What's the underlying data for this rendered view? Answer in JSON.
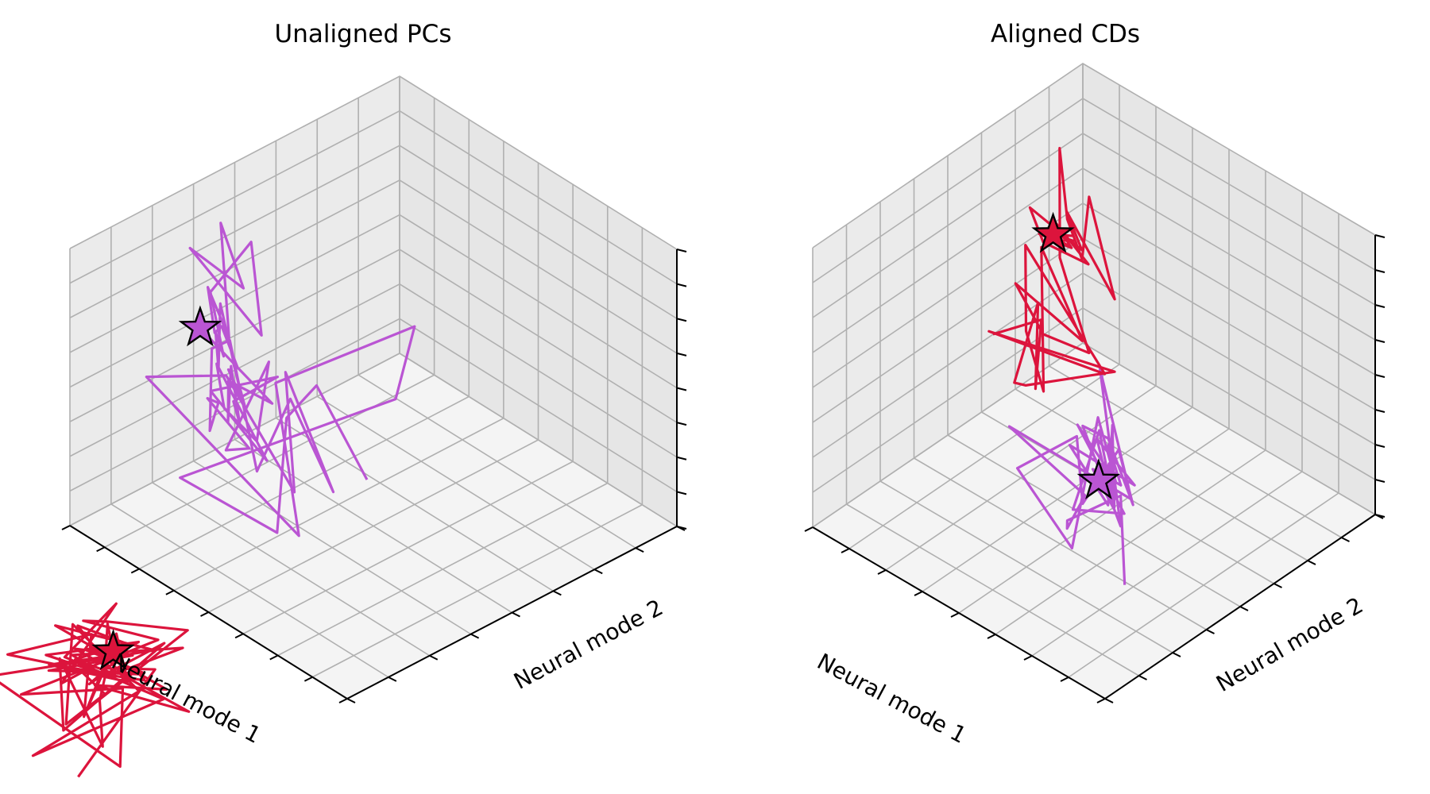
{
  "colors": {
    "red": "#dc143c",
    "purple": "#ba55d3",
    "pane_left": "#ebebeb",
    "pane_right": "#e6e6e6",
    "pane_floor": "#f4f4f4",
    "grid": "#b0b0b0"
  },
  "chart_data": [
    {
      "type": "line3d",
      "title": "Unaligned PCs",
      "xlabel": "Neural mode 1",
      "ylabel": "Neural mode 2",
      "zlabel": "",
      "grid": true,
      "series": [
        {
          "color": "red",
          "points": [
            [
              -0.1,
              -0.9,
              0.34
            ],
            [
              -0.08,
              -0.65,
              0.56
            ],
            [
              -0.13,
              -0.85,
              0.72
            ],
            [
              0.01,
              -0.79,
              0.42
            ],
            [
              -0.1,
              -0.86,
              0.83
            ],
            [
              0.0,
              -1.03,
              0.8
            ],
            [
              -0.06,
              -0.77,
              0.6
            ],
            [
              -0.18,
              -0.65,
              0.7
            ],
            [
              0.04,
              -0.8,
              0.63
            ],
            [
              -0.09,
              -0.81,
              0.64
            ],
            [
              -0.13,
              -0.86,
              0.61
            ],
            [
              -0.01,
              -0.75,
              0.3
            ],
            [
              0.05,
              -0.83,
              0.63
            ],
            [
              -0.13,
              -0.97,
              0.57
            ],
            [
              -0.03,
              -0.58,
              0.58
            ],
            [
              0.03,
              -0.72,
              0.51
            ],
            [
              -0.12,
              -0.89,
              0.59
            ],
            [
              -0.15,
              -0.61,
              0.72
            ],
            [
              0.01,
              -0.72,
              0.72
            ],
            [
              0.06,
              -0.75,
              0.71
            ],
            [
              -0.21,
              -0.75,
              0.81
            ],
            [
              0.07,
              -0.93,
              0.55
            ],
            [
              -0.13,
              -0.79,
              0.61
            ],
            [
              -0.18,
              -0.84,
              0.39
            ],
            [
              0.17,
              -0.94,
              0.56
            ],
            [
              -0.15,
              -0.71,
              0.71
            ],
            [
              0.03,
              -0.86,
              0.78
            ],
            [
              -0.11,
              -0.64,
              0.5
            ],
            [
              0.03,
              -0.74,
              0.49
            ],
            [
              -0.19,
              -0.64,
              0.47
            ],
            [
              -0.04,
              -0.86,
              0.74
            ],
            [
              -0.13,
              -0.76,
              0.71
            ],
            [
              0.03,
              -0.88,
              0.63
            ],
            [
              -0.1,
              -0.7,
              0.59
            ],
            [
              0.02,
              -0.78,
              0.65
            ],
            [
              -0.08,
              -0.7,
              0.69
            ],
            [
              -0.04,
              -0.9,
              0.64
            ],
            [
              0.06,
              -0.65,
              0.71
            ],
            [
              0.02,
              -0.84,
              0.66
            ],
            [
              -0.17,
              -0.7,
              0.54
            ],
            [
              -0.02,
              -0.97,
              0.41
            ],
            [
              -0.07,
              -0.69,
              0.5
            ],
            [
              0.11,
              -0.74,
              0.66
            ],
            [
              -0.08,
              -0.92,
              0.53
            ],
            [
              0.03,
              -0.71,
              0.44
            ],
            [
              -0.05,
              -0.85,
              0.66
            ],
            [
              -0.15,
              -0.74,
              0.62
            ],
            [
              0.0,
              -0.63,
              0.48
            ],
            [
              -0.08,
              -0.8,
              0.64
            ],
            [
              -0.14,
              -0.9,
              0.7
            ],
            [
              -0.05,
              -0.72,
              0.64
            ],
            [
              0.1,
              -0.82,
              0.57
            ],
            [
              -0.1,
              -0.75,
              0.59
            ],
            [
              0.0,
              -0.7,
              0.67
            ],
            [
              -0.1,
              -0.78,
              0.74
            ],
            [
              0.03,
              -0.8,
              0.62
            ],
            [
              -0.09,
              -0.78,
              0.63
            ],
            [
              0.08,
              -0.75,
              0.68
            ],
            [
              -0.08,
              -0.73,
              0.7
            ],
            [
              0.04,
              -0.88,
              0.68
            ],
            [
              -0.1,
              -0.82,
              0.66
            ],
            [
              0.02,
              -0.71,
              0.7
            ],
            [
              -0.06,
              -0.76,
              0.68
            ]
          ]
        },
        {
          "color": "purple",
          "points": [
            [
              0.63,
              0.59,
              0.03
            ],
            [
              0.8,
              0.58,
              0.27
            ],
            [
              0.73,
              0.43,
              0.29
            ],
            [
              0.55,
              0.25,
              0.1
            ],
            [
              0.9,
              0.25,
              0.08
            ],
            [
              0.61,
              0.66,
              0.29
            ],
            [
              0.72,
              0.81,
              0.39
            ],
            [
              0.71,
              0.38,
              0.46
            ],
            [
              0.4,
              0.19,
              0.22
            ],
            [
              0.95,
              0.19,
              0.45
            ],
            [
              0.71,
              0.23,
              0.58
            ],
            [
              0.44,
              0.21,
              0.34
            ],
            [
              0.71,
              0.41,
              0.48
            ],
            [
              0.49,
              0.37,
              0.21
            ],
            [
              0.74,
              0.45,
              0.34
            ],
            [
              0.48,
              0.13,
              0.44
            ],
            [
              0.78,
              0.3,
              0.62
            ],
            [
              0.94,
              0.38,
              0.44
            ],
            [
              0.65,
              0.13,
              0.48
            ],
            [
              0.75,
              0.24,
              0.45
            ],
            [
              0.73,
              0.19,
              0.51
            ],
            [
              0.46,
              0.09,
              0.56
            ],
            [
              0.58,
              0.12,
              0.46
            ],
            [
              0.77,
              0.41,
              0.48
            ],
            [
              0.54,
              0.18,
              0.48
            ],
            [
              0.61,
              0.14,
              0.58
            ],
            [
              0.78,
              0.26,
              0.56
            ],
            [
              0.48,
              0.16,
              0.46
            ],
            [
              0.73,
              0.2,
              0.53
            ],
            [
              0.56,
              0.26,
              0.65
            ],
            [
              0.66,
              0.21,
              0.53
            ],
            [
              0.59,
              0.17,
              0.52
            ],
            [
              0.74,
              0.27,
              0.57
            ],
            [
              0.62,
              0.16,
              0.51
            ],
            [
              0.69,
              0.22,
              0.58
            ],
            [
              0.52,
              0.21,
              0.61
            ],
            [
              0.72,
              0.26,
              0.6
            ],
            [
              0.58,
              0.18,
              0.57
            ],
            [
              0.69,
              0.22,
              0.62
            ],
            [
              0.63,
              0.21,
              0.56
            ],
            [
              0.85,
              0.33,
              0.69
            ],
            [
              0.69,
              0.19,
              0.64
            ],
            [
              0.76,
              0.24,
              0.7
            ],
            [
              0.6,
              0.13,
              0.78
            ],
            [
              0.85,
              0.3,
              0.75
            ],
            [
              0.81,
              0.39,
              0.9
            ],
            [
              0.63,
              0.27,
              0.75
            ],
            [
              0.9,
              0.28,
              0.89
            ],
            [
              0.79,
              0.35,
              0.77
            ],
            [
              0.92,
              0.39,
              0.9
            ],
            [
              0.64,
              0.18,
              0.79
            ],
            [
              0.8,
              0.25,
              0.83
            ],
            [
              0.68,
              0.17,
              0.79
            ],
            [
              0.75,
              0.25,
              0.72
            ],
            [
              0.68,
              0.24,
              0.62
            ],
            [
              0.78,
              0.21,
              0.72
            ]
          ]
        }
      ],
      "markers": [
        {
          "color": "red",
          "point": [
            -0.06,
            -0.76,
            0.68
          ]
        },
        {
          "color": "purple",
          "point": [
            0.78,
            0.21,
            0.72
          ]
        }
      ]
    },
    {
      "type": "line3d",
      "title": "Aligned CDs",
      "xlabel": "Neural mode 1",
      "ylabel": "Neural mode 2",
      "zlabel": "",
      "grid": true,
      "series": [
        {
          "color": "purple",
          "points": [
            [
              0.09,
              0.17,
              0.24
            ],
            [
              0.27,
              0.35,
              0.33
            ],
            [
              0.0,
              -0.14,
              0.73
            ],
            [
              0.25,
              0.13,
              0.37
            ],
            [
              0.05,
              -0.02,
              0.71
            ],
            [
              0.3,
              -0.03,
              0.81
            ],
            [
              0.15,
              0.26,
              0.45
            ],
            [
              0.48,
              0.5,
              0.56
            ],
            [
              0.15,
              0.22,
              0.38
            ],
            [
              0.4,
              0.35,
              0.5
            ],
            [
              0.35,
              0.39,
              0.46
            ],
            [
              0.2,
              0.32,
              0.36
            ],
            [
              0.36,
              0.44,
              0.38
            ],
            [
              0.16,
              0.09,
              0.54
            ],
            [
              0.3,
              0.22,
              0.61
            ],
            [
              0.18,
              -0.13,
              0.8
            ],
            [
              0.15,
              0.04,
              0.42
            ],
            [
              0.44,
              0.45,
              0.44
            ],
            [
              0.25,
              0.31,
              0.42
            ],
            [
              0.39,
              0.32,
              0.53
            ],
            [
              0.23,
              0.32,
              0.31
            ],
            [
              0.23,
              0.13,
              0.45
            ],
            [
              0.38,
              0.39,
              0.47
            ],
            [
              0.19,
              0.24,
              0.41
            ],
            [
              0.4,
              0.46,
              0.43
            ],
            [
              0.23,
              0.26,
              0.38
            ],
            [
              0.38,
              0.28,
              0.49
            ],
            [
              0.25,
              0.38,
              0.36
            ],
            [
              0.37,
              0.37,
              0.46
            ],
            [
              0.2,
              0.25,
              0.39
            ],
            [
              0.31,
              0.29,
              0.44
            ],
            [
              0.26,
              0.34,
              0.38
            ],
            [
              0.34,
              0.38,
              0.45
            ],
            [
              0.22,
              0.28,
              0.41
            ],
            [
              0.33,
              0.33,
              0.43
            ],
            [
              0.25,
              0.3,
              0.4
            ],
            [
              0.31,
              0.35,
              0.42
            ],
            [
              0.24,
              0.28,
              0.38
            ],
            [
              0.3,
              0.32,
              0.4
            ],
            [
              0.27,
              0.27,
              0.43
            ],
            [
              0.33,
              0.3,
              0.4
            ],
            [
              0.29,
              0.29,
              0.41
            ]
          ]
        },
        {
          "color": "red",
          "points": [
            [
              0.91,
              0.57,
              0.37
            ],
            [
              0.8,
              0.63,
              0.45
            ],
            [
              0.7,
              0.5,
              0.35
            ],
            [
              0.95,
              0.78,
              0.32
            ],
            [
              0.68,
              0.4,
              0.45
            ],
            [
              0.78,
              0.55,
              0.28
            ],
            [
              0.54,
              0.62,
              0.43
            ],
            [
              0.85,
              0.49,
              0.47
            ],
            [
              0.62,
              0.67,
              0.34
            ],
            [
              0.91,
              0.69,
              0.61
            ],
            [
              0.76,
              0.53,
              0.5
            ],
            [
              0.58,
              0.4,
              0.48
            ],
            [
              0.92,
              0.76,
              0.55
            ],
            [
              0.66,
              0.63,
              0.46
            ],
            [
              0.87,
              0.61,
              0.55
            ],
            [
              0.72,
              0.55,
              0.5
            ],
            [
              0.6,
              0.59,
              0.48
            ],
            [
              0.82,
              0.72,
              0.6
            ],
            [
              0.95,
              0.86,
              0.82
            ],
            [
              0.85,
              0.78,
              0.68
            ],
            [
              0.79,
              0.77,
              0.58
            ],
            [
              0.84,
              0.85,
              0.72
            ],
            [
              0.66,
              0.75,
              0.53
            ],
            [
              0.88,
              0.81,
              0.67
            ],
            [
              0.8,
              0.78,
              0.6
            ],
            [
              0.95,
              0.75,
              0.68
            ],
            [
              0.84,
              0.68,
              0.67
            ],
            [
              0.75,
              0.75,
              0.6
            ],
            [
              0.9,
              0.78,
              0.65
            ],
            [
              0.78,
              0.72,
              0.66
            ],
            [
              0.87,
              0.74,
              0.62
            ],
            [
              0.81,
              0.76,
              0.64
            ],
            [
              0.88,
              0.72,
              0.66
            ],
            [
              0.83,
              0.77,
              0.6
            ],
            [
              0.9,
              0.73,
              0.63
            ],
            [
              0.84,
              0.79,
              0.62
            ],
            [
              0.88,
              0.76,
              0.62
            ]
          ]
        }
      ],
      "markers": [
        {
          "color": "purple",
          "point": [
            0.29,
            0.29,
            0.41
          ]
        },
        {
          "color": "red",
          "point": [
            0.88,
            0.76,
            0.62
          ]
        }
      ]
    }
  ]
}
